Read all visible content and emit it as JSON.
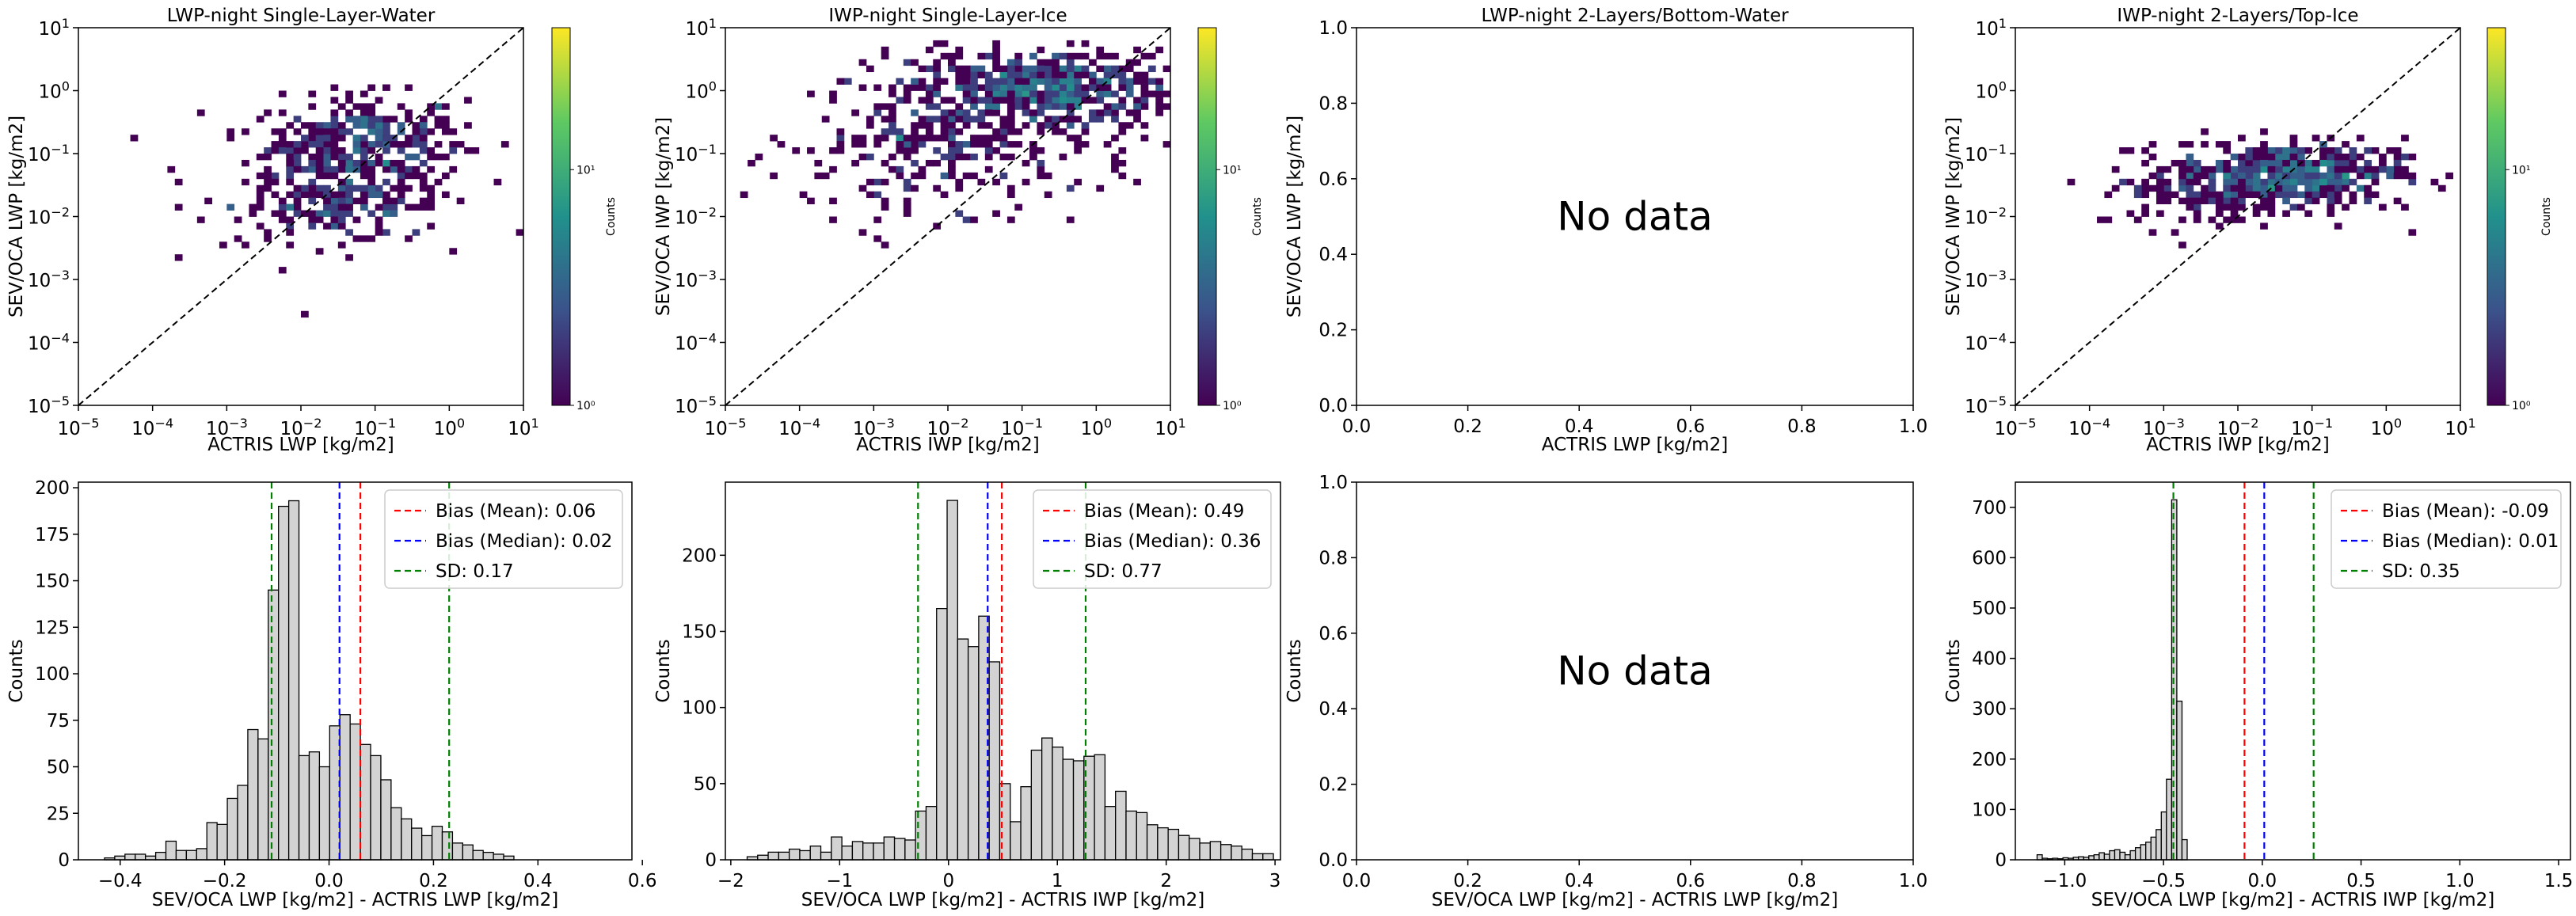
{
  "chart_data": [
    {
      "type": "heatmap",
      "title": "LWP-night Single-Layer-Water",
      "xlabel": "ACTRIS LWP [kg/m2]",
      "ylabel": "SEV/OCA LWP [kg/m2]",
      "xscale": "log",
      "yscale": "log",
      "xlim_exp": [
        -5,
        1
      ],
      "ylim_exp": [
        -5,
        1
      ],
      "has_data": true,
      "colorbar": {
        "label": "Counts",
        "ticks": [
          "10⁰",
          "10¹"
        ],
        "vmax": 40
      },
      "blobs": [
        {
          "cx": -1.1,
          "cy": -0.8,
          "sx": 0.65,
          "sy": 0.35,
          "n": 260
        },
        {
          "cx": -1.5,
          "cy": -1.8,
          "sx": 0.7,
          "sy": 0.3,
          "n": 170
        },
        {
          "cx": -1.4,
          "cy": -1.3,
          "sx": 1.0,
          "sy": 0.55,
          "n": 110
        }
      ]
    },
    {
      "type": "heatmap",
      "title": "IWP-night Single-Layer-Ice",
      "xlabel": "ACTRIS IWP [kg/m2]",
      "ylabel": "SEV/OCA IWP [kg/m2]",
      "xscale": "log",
      "yscale": "log",
      "xlim_exp": [
        -5,
        1
      ],
      "ylim_exp": [
        -5,
        1
      ],
      "has_data": true,
      "colorbar": {
        "label": "Counts",
        "ticks": [
          "10⁰",
          "10¹"
        ],
        "vmax": 40
      },
      "blobs": [
        {
          "cx": -0.7,
          "cy": 0.05,
          "sx": 0.9,
          "sy": 0.3,
          "n": 480
        },
        {
          "cx": -1.6,
          "cy": -0.7,
          "sx": 1.1,
          "sy": 0.55,
          "n": 260
        },
        {
          "cx": -2.6,
          "cy": -1.2,
          "sx": 0.8,
          "sy": 0.6,
          "n": 80
        }
      ]
    },
    {
      "type": "heatmap",
      "title": "LWP-night 2-Layers/Bottom-Water",
      "xlabel": "ACTRIS LWP [kg/m2]",
      "ylabel": "SEV/OCA LWP [kg/m2]",
      "xlim": [
        0,
        1
      ],
      "ylim": [
        0,
        1
      ],
      "xticks": [
        "0.0",
        "0.2",
        "0.4",
        "0.6",
        "0.8",
        "1.0"
      ],
      "yticks": [
        "0.0",
        "0.2",
        "0.4",
        "0.6",
        "0.8",
        "1.0"
      ],
      "has_data": false,
      "annotation": "No data"
    },
    {
      "type": "heatmap",
      "title": "IWP-night 2-Layers/Top-Ice",
      "xlabel": "ACTRIS IWP [kg/m2]",
      "ylabel": "SEV/OCA IWP [kg/m2]",
      "xscale": "log",
      "yscale": "log",
      "xlim_exp": [
        -5,
        1
      ],
      "ylim_exp": [
        -5,
        1
      ],
      "has_data": true,
      "colorbar": {
        "label": "Counts",
        "ticks": [
          "10⁰",
          "10¹"
        ],
        "vmax": 40
      },
      "blobs": [
        {
          "cx": -1.3,
          "cy": -1.3,
          "sx": 0.75,
          "sy": 0.25,
          "n": 420
        },
        {
          "cx": -2.2,
          "cy": -1.6,
          "sx": 0.9,
          "sy": 0.3,
          "n": 140
        }
      ]
    },
    {
      "type": "bar",
      "subtype": "histogram",
      "xlabel": "SEV/OCA LWP [kg/m2] - ACTRIS LWP [kg/m2]",
      "ylabel": "Counts",
      "xlim": [
        -0.48,
        0.58
      ],
      "ylim": [
        0,
        203
      ],
      "xticks": [
        -0.4,
        -0.2,
        0.0,
        0.2,
        0.4,
        0.6
      ],
      "xtick_labels": [
        "−0.4",
        "−0.2",
        "0.0",
        "0.2",
        "0.4",
        "0.6"
      ],
      "yticks": [
        0,
        25,
        50,
        75,
        100,
        125,
        150,
        175,
        200
      ],
      "bin_start": -0.43,
      "bin_width": 0.0196,
      "values": [
        1,
        2,
        3,
        3,
        2,
        4,
        10,
        5,
        5,
        6,
        20,
        19,
        33,
        40,
        70,
        65,
        145,
        190,
        193,
        56,
        58,
        50,
        72,
        78,
        73,
        62,
        56,
        43,
        28,
        22,
        17,
        13,
        18,
        15,
        9,
        8,
        5,
        4,
        3,
        2
      ],
      "lines": [
        {
          "name": "Bias (Mean): 0.06",
          "x": 0.06,
          "color": "#ff0000"
        },
        {
          "name": "Bias (Median): 0.02",
          "x": 0.02,
          "color": "#0000ff"
        },
        {
          "name": "SD: 0.17",
          "x": -0.11,
          "x2": 0.23,
          "color": "#008000"
        }
      ],
      "legend_position": "top-right"
    },
    {
      "type": "bar",
      "subtype": "histogram",
      "xlabel": "SEV/OCA LWP [kg/m2] - ACTRIS IWP [kg/m2]",
      "ylabel": "Counts",
      "xlim": [
        -2.05,
        3.05
      ],
      "ylim": [
        0,
        248
      ],
      "xticks": [
        -2,
        -1,
        0,
        1,
        2,
        3
      ],
      "xtick_labels": [
        "−2",
        "−1",
        "0",
        "1",
        "2",
        "3"
      ],
      "yticks": [
        0,
        50,
        100,
        150,
        200
      ],
      "bin_start": -1.85,
      "bin_width": 0.0967,
      "values": [
        2,
        3,
        5,
        5,
        7,
        6,
        9,
        5,
        15,
        9,
        12,
        11,
        11,
        15,
        14,
        13,
        32,
        35,
        165,
        236,
        145,
        140,
        160,
        130,
        50,
        25,
        48,
        72,
        80,
        74,
        66,
        65,
        68,
        69,
        35,
        45,
        32,
        31,
        23,
        21,
        20,
        16,
        14,
        11,
        12,
        10,
        9,
        7,
        4,
        4
      ],
      "lines": [
        {
          "name": "Bias (Mean): 0.49",
          "x": 0.49,
          "color": "#ff0000"
        },
        {
          "name": "Bias (Median): 0.36",
          "x": 0.36,
          "color": "#0000ff"
        },
        {
          "name": "SD: 0.77",
          "x": -0.28,
          "x2": 1.26,
          "color": "#008000"
        }
      ],
      "legend_position": "top-right"
    },
    {
      "type": "bar",
      "subtype": "histogram",
      "xlabel": "SEV/OCA LWP [kg/m2] - ACTRIS LWP [kg/m2]",
      "ylabel": "Counts",
      "xlim": [
        0,
        1
      ],
      "ylim": [
        0,
        1
      ],
      "xticks": [
        0,
        0.2,
        0.4,
        0.6,
        0.8,
        1.0
      ],
      "xtick_labels": [
        "0.0",
        "0.2",
        "0.4",
        "0.6",
        "0.8",
        "1.0"
      ],
      "yticks": [
        0,
        0.2,
        0.4,
        0.6,
        0.8,
        1.0
      ],
      "ytick_labels": [
        "0.0",
        "0.2",
        "0.4",
        "0.6",
        "0.8",
        "1.0"
      ],
      "has_data": false,
      "annotation": "No data"
    },
    {
      "type": "bar",
      "subtype": "histogram",
      "xlabel": "SEV/OCA LWP [kg/m2] - ACTRIS IWP [kg/m2]",
      "ylabel": "Counts",
      "xlim": [
        -1.25,
        1.56
      ],
      "ylim": [
        0,
        750
      ],
      "xticks": [
        -1.0,
        -0.5,
        0.0,
        0.5,
        1.0,
        1.5
      ],
      "xtick_labels": [
        "−1.0",
        "−0.5",
        "0.0",
        "0.5",
        "1.0",
        "1.5"
      ],
      "yticks": [
        0,
        100,
        200,
        300,
        400,
        500,
        600,
        700
      ],
      "bin_start": -1.14,
      "bin_width": 0.0262,
      "values": [
        10,
        3,
        2,
        3,
        2,
        4,
        3,
        5,
        6,
        5,
        8,
        10,
        14,
        11,
        18,
        20,
        15,
        10,
        18,
        24,
        30,
        35,
        45,
        60,
        95,
        160,
        715,
        315,
        40
      ],
      "lines": [
        {
          "name": "Bias (Mean): -0.09",
          "x": -0.09,
          "color": "#ff0000"
        },
        {
          "name": "Bias (Median): 0.01",
          "x": 0.01,
          "color": "#0000ff"
        },
        {
          "name": "SD: 0.35",
          "x": -0.45,
          "x2": 0.26,
          "color": "#008000"
        }
      ],
      "legend_position": "top-right"
    }
  ]
}
